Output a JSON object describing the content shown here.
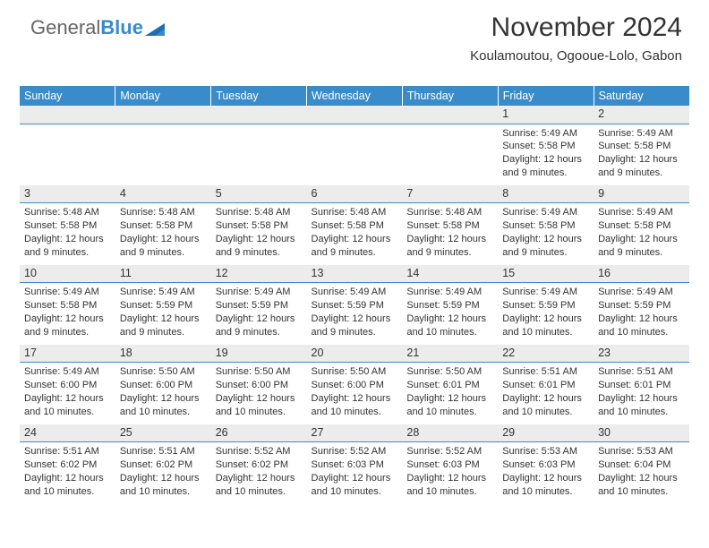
{
  "logo": {
    "text_gray": "General",
    "text_blue": "Blue"
  },
  "header": {
    "title": "November 2024",
    "subtitle": "Koulamoutou, Ogooue-Lolo, Gabon"
  },
  "colors": {
    "header_bg": "#3a8bc9",
    "header_text": "#ffffff",
    "daynum_bg": "#ececec",
    "daynum_border": "#3a8bc9",
    "body_text": "#333333",
    "page_bg": "#ffffff"
  },
  "fonts": {
    "title_size": 30,
    "subtitle_size": 15,
    "weekday_size": 12.5,
    "daynum_size": 12.5,
    "cell_size": 11
  },
  "weekdays": [
    "Sunday",
    "Monday",
    "Tuesday",
    "Wednesday",
    "Thursday",
    "Friday",
    "Saturday"
  ],
  "weeks": [
    [
      null,
      null,
      null,
      null,
      null,
      {
        "n": "1",
        "sunrise": "Sunrise: 5:49 AM",
        "sunset": "Sunset: 5:58 PM",
        "dl1": "Daylight: 12 hours",
        "dl2": "and 9 minutes."
      },
      {
        "n": "2",
        "sunrise": "Sunrise: 5:49 AM",
        "sunset": "Sunset: 5:58 PM",
        "dl1": "Daylight: 12 hours",
        "dl2": "and 9 minutes."
      }
    ],
    [
      {
        "n": "3",
        "sunrise": "Sunrise: 5:48 AM",
        "sunset": "Sunset: 5:58 PM",
        "dl1": "Daylight: 12 hours",
        "dl2": "and 9 minutes."
      },
      {
        "n": "4",
        "sunrise": "Sunrise: 5:48 AM",
        "sunset": "Sunset: 5:58 PM",
        "dl1": "Daylight: 12 hours",
        "dl2": "and 9 minutes."
      },
      {
        "n": "5",
        "sunrise": "Sunrise: 5:48 AM",
        "sunset": "Sunset: 5:58 PM",
        "dl1": "Daylight: 12 hours",
        "dl2": "and 9 minutes."
      },
      {
        "n": "6",
        "sunrise": "Sunrise: 5:48 AM",
        "sunset": "Sunset: 5:58 PM",
        "dl1": "Daylight: 12 hours",
        "dl2": "and 9 minutes."
      },
      {
        "n": "7",
        "sunrise": "Sunrise: 5:48 AM",
        "sunset": "Sunset: 5:58 PM",
        "dl1": "Daylight: 12 hours",
        "dl2": "and 9 minutes."
      },
      {
        "n": "8",
        "sunrise": "Sunrise: 5:49 AM",
        "sunset": "Sunset: 5:58 PM",
        "dl1": "Daylight: 12 hours",
        "dl2": "and 9 minutes."
      },
      {
        "n": "9",
        "sunrise": "Sunrise: 5:49 AM",
        "sunset": "Sunset: 5:58 PM",
        "dl1": "Daylight: 12 hours",
        "dl2": "and 9 minutes."
      }
    ],
    [
      {
        "n": "10",
        "sunrise": "Sunrise: 5:49 AM",
        "sunset": "Sunset: 5:58 PM",
        "dl1": "Daylight: 12 hours",
        "dl2": "and 9 minutes."
      },
      {
        "n": "11",
        "sunrise": "Sunrise: 5:49 AM",
        "sunset": "Sunset: 5:59 PM",
        "dl1": "Daylight: 12 hours",
        "dl2": "and 9 minutes."
      },
      {
        "n": "12",
        "sunrise": "Sunrise: 5:49 AM",
        "sunset": "Sunset: 5:59 PM",
        "dl1": "Daylight: 12 hours",
        "dl2": "and 9 minutes."
      },
      {
        "n": "13",
        "sunrise": "Sunrise: 5:49 AM",
        "sunset": "Sunset: 5:59 PM",
        "dl1": "Daylight: 12 hours",
        "dl2": "and 9 minutes."
      },
      {
        "n": "14",
        "sunrise": "Sunrise: 5:49 AM",
        "sunset": "Sunset: 5:59 PM",
        "dl1": "Daylight: 12 hours",
        "dl2": "and 10 minutes."
      },
      {
        "n": "15",
        "sunrise": "Sunrise: 5:49 AM",
        "sunset": "Sunset: 5:59 PM",
        "dl1": "Daylight: 12 hours",
        "dl2": "and 10 minutes."
      },
      {
        "n": "16",
        "sunrise": "Sunrise: 5:49 AM",
        "sunset": "Sunset: 5:59 PM",
        "dl1": "Daylight: 12 hours",
        "dl2": "and 10 minutes."
      }
    ],
    [
      {
        "n": "17",
        "sunrise": "Sunrise: 5:49 AM",
        "sunset": "Sunset: 6:00 PM",
        "dl1": "Daylight: 12 hours",
        "dl2": "and 10 minutes."
      },
      {
        "n": "18",
        "sunrise": "Sunrise: 5:50 AM",
        "sunset": "Sunset: 6:00 PM",
        "dl1": "Daylight: 12 hours",
        "dl2": "and 10 minutes."
      },
      {
        "n": "19",
        "sunrise": "Sunrise: 5:50 AM",
        "sunset": "Sunset: 6:00 PM",
        "dl1": "Daylight: 12 hours",
        "dl2": "and 10 minutes."
      },
      {
        "n": "20",
        "sunrise": "Sunrise: 5:50 AM",
        "sunset": "Sunset: 6:00 PM",
        "dl1": "Daylight: 12 hours",
        "dl2": "and 10 minutes."
      },
      {
        "n": "21",
        "sunrise": "Sunrise: 5:50 AM",
        "sunset": "Sunset: 6:01 PM",
        "dl1": "Daylight: 12 hours",
        "dl2": "and 10 minutes."
      },
      {
        "n": "22",
        "sunrise": "Sunrise: 5:51 AM",
        "sunset": "Sunset: 6:01 PM",
        "dl1": "Daylight: 12 hours",
        "dl2": "and 10 minutes."
      },
      {
        "n": "23",
        "sunrise": "Sunrise: 5:51 AM",
        "sunset": "Sunset: 6:01 PM",
        "dl1": "Daylight: 12 hours",
        "dl2": "and 10 minutes."
      }
    ],
    [
      {
        "n": "24",
        "sunrise": "Sunrise: 5:51 AM",
        "sunset": "Sunset: 6:02 PM",
        "dl1": "Daylight: 12 hours",
        "dl2": "and 10 minutes."
      },
      {
        "n": "25",
        "sunrise": "Sunrise: 5:51 AM",
        "sunset": "Sunset: 6:02 PM",
        "dl1": "Daylight: 12 hours",
        "dl2": "and 10 minutes."
      },
      {
        "n": "26",
        "sunrise": "Sunrise: 5:52 AM",
        "sunset": "Sunset: 6:02 PM",
        "dl1": "Daylight: 12 hours",
        "dl2": "and 10 minutes."
      },
      {
        "n": "27",
        "sunrise": "Sunrise: 5:52 AM",
        "sunset": "Sunset: 6:03 PM",
        "dl1": "Daylight: 12 hours",
        "dl2": "and 10 minutes."
      },
      {
        "n": "28",
        "sunrise": "Sunrise: 5:52 AM",
        "sunset": "Sunset: 6:03 PM",
        "dl1": "Daylight: 12 hours",
        "dl2": "and 10 minutes."
      },
      {
        "n": "29",
        "sunrise": "Sunrise: 5:53 AM",
        "sunset": "Sunset: 6:03 PM",
        "dl1": "Daylight: 12 hours",
        "dl2": "and 10 minutes."
      },
      {
        "n": "30",
        "sunrise": "Sunrise: 5:53 AM",
        "sunset": "Sunset: 6:04 PM",
        "dl1": "Daylight: 12 hours",
        "dl2": "and 10 minutes."
      }
    ]
  ]
}
